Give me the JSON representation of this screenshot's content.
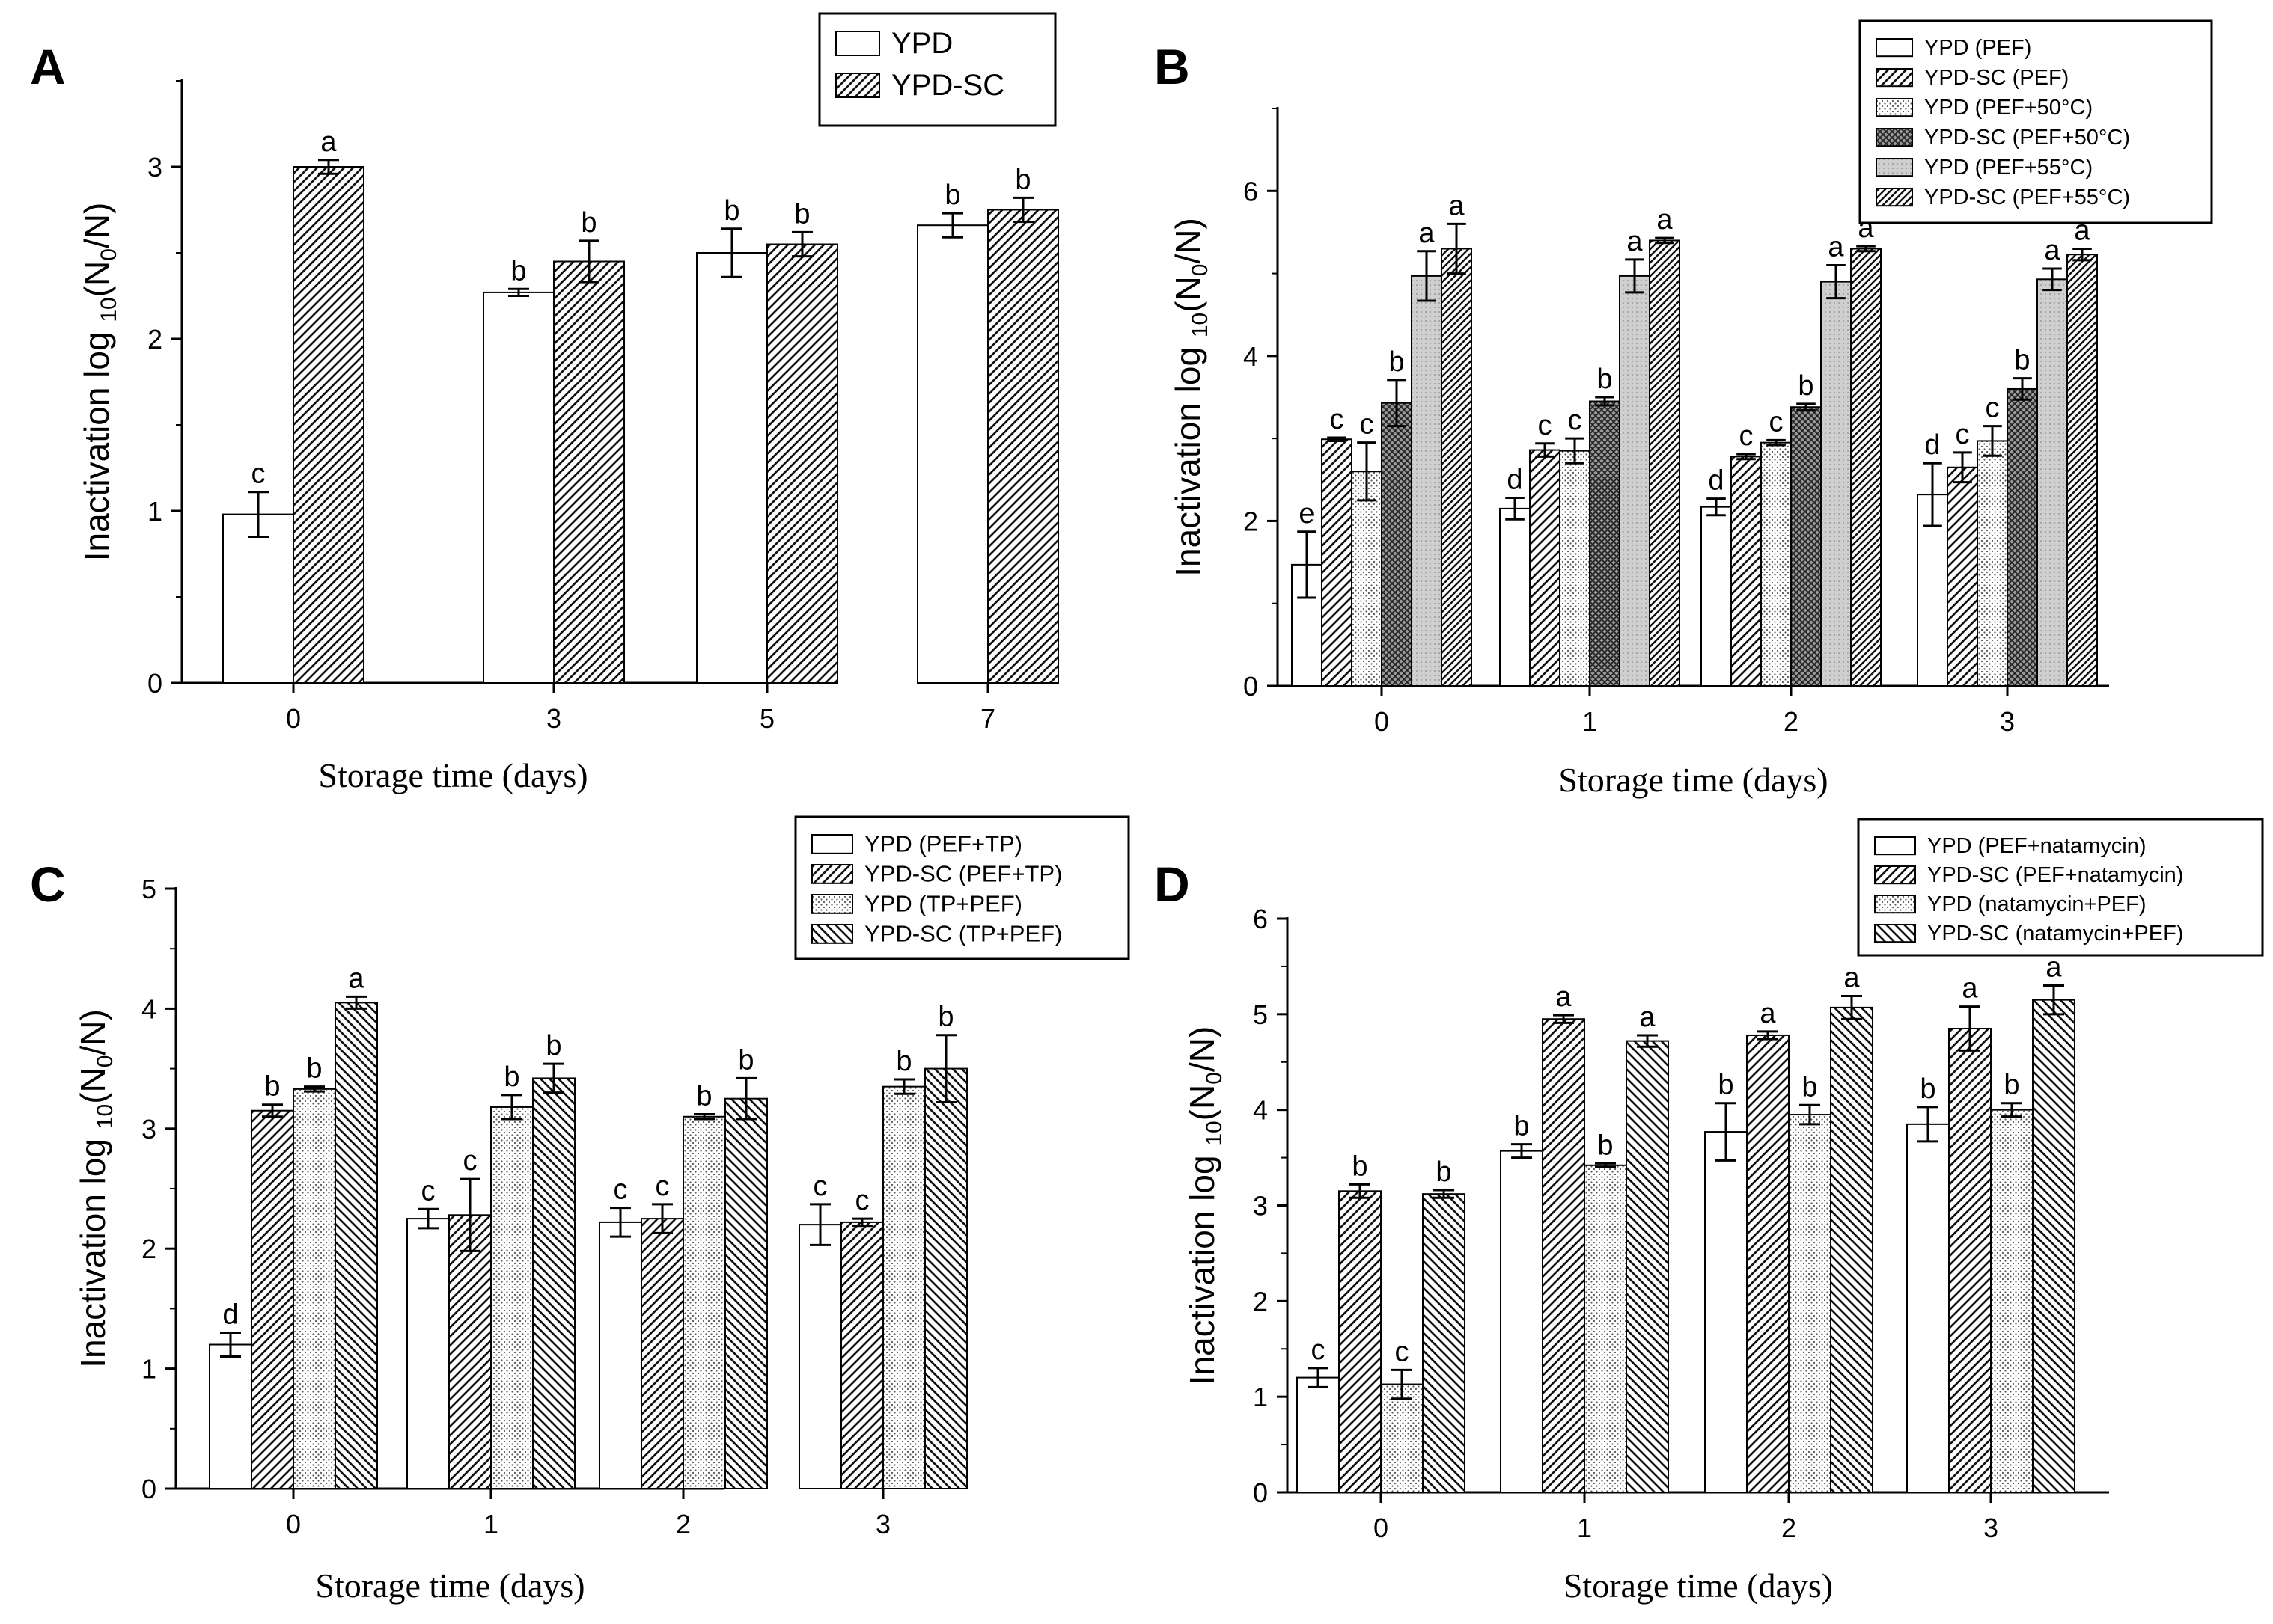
{
  "chart_data": [
    {
      "panel": "A",
      "type": "bar",
      "title": "",
      "xlabel": "Storage time (days)",
      "ylabel_prefix": "Inactivation log",
      "ylabel_sub1": "10",
      "ylabel_mid": "(N",
      "ylabel_sub2": "0",
      "ylabel_suffix": "/N)",
      "ylim": [
        0,
        3.5
      ],
      "yticks": [
        "0",
        "1",
        "2",
        "3"
      ],
      "categories": [
        "0",
        "3",
        "5",
        "7"
      ],
      "legend_position": "top-right",
      "series": [
        {
          "name": "YPD",
          "pattern": "white",
          "values": [
            0.98,
            2.27,
            2.5,
            2.66
          ],
          "errors": [
            0.13,
            0.02,
            0.14,
            0.07
          ],
          "letters": [
            "c",
            "b",
            "b",
            "b"
          ]
        },
        {
          "name": "YPD-SC",
          "pattern": "diag",
          "values": [
            3.0,
            2.45,
            2.55,
            2.75
          ],
          "errors": [
            0.04,
            0.12,
            0.07,
            0.07
          ],
          "letters": [
            "a",
            "b",
            "b",
            "b"
          ]
        }
      ]
    },
    {
      "panel": "B",
      "type": "bar",
      "title": "",
      "xlabel": "Storage time (days)",
      "ylabel_prefix": "Inactivation log",
      "ylabel_sub1": "10",
      "ylabel_mid": "(N",
      "ylabel_sub2": "0",
      "ylabel_suffix": "/N)",
      "ylim": [
        0,
        7
      ],
      "yticks": [
        "0",
        "2",
        "4",
        "6"
      ],
      "categories": [
        "0",
        "1",
        "2",
        "3"
      ],
      "legend_position": "top-right",
      "series": [
        {
          "name": "YPD (PEF)",
          "pattern": "white",
          "values": [
            1.47,
            2.15,
            2.17,
            2.32
          ],
          "errors": [
            0.4,
            0.13,
            0.1,
            0.38
          ],
          "letters": [
            "e",
            "d",
            "d",
            "d"
          ]
        },
        {
          "name": "YPD-SC (PEF)",
          "pattern": "diag",
          "values": [
            2.99,
            2.86,
            2.78,
            2.65
          ],
          "errors": [
            0.02,
            0.08,
            0.03,
            0.18
          ],
          "letters": [
            "c",
            "c",
            "c",
            "c"
          ]
        },
        {
          "name": "YPD (PEF+50°C)",
          "pattern": "dots",
          "values": [
            2.6,
            2.85,
            2.95,
            2.97
          ],
          "errors": [
            0.35,
            0.15,
            0.03,
            0.18
          ],
          "letters": [
            "c",
            "c",
            "c",
            "c"
          ]
        },
        {
          "name": "YPD-SC (PEF+50°C)",
          "pattern": "cross",
          "values": [
            3.43,
            3.45,
            3.38,
            3.6
          ],
          "errors": [
            0.28,
            0.05,
            0.04,
            0.13
          ],
          "letters": [
            "b",
            "b",
            "b",
            "b"
          ]
        },
        {
          "name": "YPD (PEF+55°C)",
          "pattern": "gray",
          "values": [
            4.97,
            4.97,
            4.9,
            4.93
          ],
          "errors": [
            0.3,
            0.2,
            0.2,
            0.13
          ],
          "letters": [
            "a",
            "a",
            "a",
            "a"
          ]
        },
        {
          "name": "YPD-SC (PEF+55°C)",
          "pattern": "diag2",
          "values": [
            5.3,
            5.4,
            5.3,
            5.23
          ],
          "errors": [
            0.3,
            0.03,
            0.03,
            0.07
          ],
          "letters": [
            "a",
            "a",
            "a",
            "a"
          ]
        }
      ]
    },
    {
      "panel": "C",
      "type": "bar",
      "title": "",
      "xlabel": "Storage time (days)",
      "ylabel_prefix": "Inactivation log",
      "ylabel_sub1": "10",
      "ylabel_mid": "(N",
      "ylabel_sub2": "0",
      "ylabel_suffix": "/N)",
      "ylim": [
        0,
        5
      ],
      "yticks": [
        "0",
        "1",
        "2",
        "3",
        "4",
        "5"
      ],
      "categories": [
        "0",
        "1",
        "2",
        "3"
      ],
      "legend_position": "top-right",
      "series": [
        {
          "name": "YPD (PEF+TP)",
          "pattern": "white",
          "values": [
            1.2,
            2.25,
            2.22,
            2.2
          ],
          "errors": [
            0.1,
            0.08,
            0.12,
            0.17
          ],
          "letters": [
            "d",
            "c",
            "c",
            "c"
          ]
        },
        {
          "name": "YPD-SC (PEF+TP)",
          "pattern": "diag",
          "values": [
            3.15,
            2.28,
            2.25,
            2.22
          ],
          "errors": [
            0.05,
            0.3,
            0.12,
            0.03
          ],
          "letters": [
            "b",
            "c",
            "c",
            "c"
          ]
        },
        {
          "name": "YPD (TP+PEF)",
          "pattern": "dots",
          "values": [
            3.33,
            3.18,
            3.1,
            3.35
          ],
          "errors": [
            0.02,
            0.1,
            0.02,
            0.06
          ],
          "letters": [
            "b",
            "b",
            "b",
            "b"
          ]
        },
        {
          "name": "YPD-SC (TP+PEF)",
          "pattern": "back",
          "values": [
            4.05,
            3.42,
            3.25,
            3.5
          ],
          "errors": [
            0.05,
            0.12,
            0.17,
            0.28
          ],
          "letters": [
            "a",
            "b",
            "b",
            "b"
          ]
        }
      ]
    },
    {
      "panel": "D",
      "type": "bar",
      "title": "",
      "xlabel": "Storage time (days)",
      "ylabel_prefix": "Inactivation log",
      "ylabel_sub1": "10",
      "ylabel_mid": "(N",
      "ylabel_sub2": "0",
      "ylabel_suffix": "/N)",
      "ylim": [
        0,
        6
      ],
      "yticks": [
        "0",
        "1",
        "2",
        "3",
        "4",
        "5",
        "6"
      ],
      "categories": [
        "0",
        "1",
        "2",
        "3"
      ],
      "legend_position": "top-right",
      "series": [
        {
          "name": "YPD (PEF+natamycin)",
          "pattern": "white",
          "values": [
            1.2,
            3.57,
            3.77,
            3.85
          ],
          "errors": [
            0.1,
            0.07,
            0.3,
            0.18
          ],
          "letters": [
            "c",
            "b",
            "b",
            "b"
          ]
        },
        {
          "name": "YPD-SC (PEF+natamycin)",
          "pattern": "diag",
          "values": [
            3.15,
            4.95,
            4.78,
            4.85
          ],
          "errors": [
            0.07,
            0.04,
            0.04,
            0.23
          ],
          "letters": [
            "b",
            "a",
            "a",
            "a"
          ]
        },
        {
          "name": "YPD (natamycin+PEF)",
          "pattern": "dots",
          "values": [
            1.13,
            3.42,
            3.95,
            4.0
          ],
          "errors": [
            0.15,
            0.02,
            0.1,
            0.07
          ],
          "letters": [
            "c",
            "b",
            "b",
            "b"
          ]
        },
        {
          "name": "YPD-SC (natamycin+PEF)",
          "pattern": "back",
          "values": [
            3.12,
            4.72,
            5.07,
            5.15
          ],
          "errors": [
            0.04,
            0.06,
            0.12,
            0.15
          ],
          "letters": [
            "b",
            "a",
            "a",
            "a"
          ]
        }
      ]
    }
  ]
}
